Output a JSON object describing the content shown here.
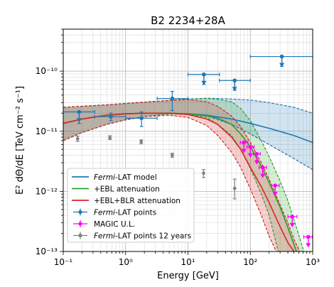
{
  "chart_data": {
    "type": "line",
    "title": "B2 2234+28A",
    "xlabel": "Energy [GeV]",
    "ylabel": "E² dΘ/dE [TeV cm⁻² s⁻¹]",
    "xscale": "log",
    "yscale": "log",
    "xlim": [
      0.1,
      1000
    ],
    "ylim": [
      1e-13,
      5e-10
    ],
    "grid": true,
    "legend_position": "lower-left",
    "x_ticks": [
      "10⁻¹",
      "10⁰",
      "10¹",
      "10²",
      "10³"
    ],
    "y_ticks": [
      "10⁻¹³",
      "10⁻¹²",
      "10⁻¹¹",
      "10⁻¹⁰"
    ],
    "colors": {
      "model": "#1f77b4",
      "ebl": "#2ca02c",
      "ebl_blr": "#d62728",
      "lat_points": "#1f77b4",
      "magic": "#ff00ff",
      "lat12": "#7f7f7f"
    },
    "series": [
      {
        "name": "Fermi-LAT model",
        "kind": "line",
        "color": "#1f77b4",
        "x": [
          0.1,
          0.2,
          0.5,
          1,
          2,
          5,
          10,
          20,
          50,
          100,
          200,
          500,
          1000
        ],
        "y": [
          1.35e-11,
          1.6e-11,
          1.85e-11,
          1.95e-11,
          2e-11,
          2e-11,
          1.95e-11,
          1.85e-11,
          1.6e-11,
          1.35e-11,
          1.12e-11,
          8.5e-12,
          6.5e-12
        ],
        "band_low": [
          7e-12,
          9.5e-12,
          1.3e-11,
          1.55e-11,
          1.75e-11,
          1.95e-11,
          1.95e-11,
          1.8e-11,
          1.3e-11,
          9e-12,
          6e-12,
          3.5e-12,
          2.3e-12
        ],
        "band_high": [
          2.5e-11,
          2.6e-11,
          2.75e-11,
          2.9e-11,
          3.05e-11,
          3.25e-11,
          3.45e-11,
          3.55e-11,
          3.45e-11,
          3.3e-11,
          3e-11,
          2.5e-11,
          2e-11
        ]
      },
      {
        "name": "+EBL attenuation",
        "kind": "line",
        "color": "#2ca02c",
        "x": [
          0.1,
          0.2,
          0.5,
          1,
          2,
          5,
          10,
          20,
          30,
          50,
          70,
          100,
          150,
          200,
          300,
          400,
          550
        ],
        "y": [
          1.35e-11,
          1.6e-11,
          1.85e-11,
          1.95e-11,
          2e-11,
          2e-11,
          1.95e-11,
          1.8e-11,
          1.65e-11,
          1.3e-11,
          9e-12,
          5.5e-12,
          2.6e-12,
          1.4e-12,
          5.5e-13,
          2.5e-13,
          1e-13
        ],
        "band_low": [
          7e-12,
          9.5e-12,
          1.3e-11,
          1.55e-11,
          1.75e-11,
          1.95e-11,
          1.9e-11,
          1.7e-11,
          1.3e-11,
          8.5e-12,
          5e-12,
          2.4e-12,
          9e-13,
          4e-13,
          1e-13
        ],
        "band_high": [
          2.5e-11,
          2.6e-11,
          2.75e-11,
          2.9e-11,
          3.05e-11,
          3.25e-11,
          3.45e-11,
          3.5e-11,
          3.4e-11,
          3.1e-11,
          2.4e-11,
          1.5e-11,
          7e-12,
          3.8e-12,
          1.5e-12,
          7e-13,
          2.5e-13,
          1e-13
        ],
        "band_low_x": [
          0.1,
          0.2,
          0.5,
          1,
          2,
          5,
          10,
          20,
          30,
          50,
          70,
          100,
          150,
          200,
          280
        ],
        "band_high_x": [
          0.1,
          0.2,
          0.5,
          1,
          2,
          5,
          10,
          20,
          30,
          50,
          70,
          100,
          150,
          200,
          300,
          400,
          550,
          720
        ]
      },
      {
        "name": "+EBL+BLR attenuation",
        "kind": "line",
        "color": "#d62728",
        "x": [
          0.1,
          0.2,
          0.5,
          1,
          2,
          5,
          10,
          20,
          30,
          50,
          70,
          100,
          150,
          200,
          300,
          400,
          500
        ],
        "y": [
          1.35e-11,
          1.6e-11,
          1.85e-11,
          1.95e-11,
          2e-11,
          2e-11,
          1.9e-11,
          1.6e-11,
          1.3e-11,
          8e-12,
          5e-12,
          2.5e-12,
          1.2e-12,
          6.5e-13,
          2.6e-13,
          1.4e-13,
          1e-13
        ],
        "band_low": [
          7e-12,
          9.5e-12,
          1.3e-11,
          1.55e-11,
          1.75e-11,
          1.85e-11,
          1.7e-11,
          1.25e-11,
          8.5e-12,
          4.5e-12,
          2.5e-12,
          1.1e-12,
          4e-13,
          1.8e-13,
          1e-13
        ],
        "band_low_x": [
          0.1,
          0.2,
          0.5,
          1,
          2,
          5,
          10,
          20,
          30,
          50,
          70,
          100,
          150,
          200,
          260
        ],
        "band_high": [
          2.5e-11,
          2.6e-11,
          2.75e-11,
          2.9e-11,
          3.05e-11,
          3.25e-11,
          3.35e-11,
          3.1e-11,
          2.6e-11,
          1.8e-11,
          1.2e-11,
          6.5e-12,
          3e-12,
          1.6e-12,
          6e-13,
          3e-13,
          1.6e-13,
          1e-13
        ],
        "band_high_x": [
          0.1,
          0.2,
          0.5,
          1,
          2,
          5,
          10,
          20,
          30,
          50,
          70,
          100,
          150,
          200,
          300,
          400,
          500,
          620
        ]
      },
      {
        "name": "Fermi-LAT points",
        "kind": "errorbar",
        "color": "#1f77b4",
        "points": [
          {
            "x": 0.18,
            "y": 2.1e-11,
            "xlo": 0.1,
            "xhi": 0.32,
            "ylo": 1.35e-11,
            "yhi": 2.1e-11,
            "ul": true
          },
          {
            "x": 0.58,
            "y": 1.75e-11,
            "xlo": 0.32,
            "xhi": 1.0,
            "ylo": 1.5e-11,
            "yhi": 2e-11,
            "ul": false
          },
          {
            "x": 1.8,
            "y": 1.65e-11,
            "xlo": 1.0,
            "xhi": 3.2,
            "ylo": 1.2e-11,
            "yhi": 2.1e-11,
            "ul": false
          },
          {
            "x": 5.6,
            "y": 3.5e-11,
            "xlo": 3.2,
            "xhi": 10.0,
            "ylo": 2.2e-11,
            "yhi": 4.6e-11,
            "ul": false
          },
          {
            "x": 18,
            "y": 8.8e-11,
            "xlo": 10,
            "xhi": 32,
            "ylo": 6e-11,
            "yhi": 8.8e-11,
            "ul": true
          },
          {
            "x": 56,
            "y": 7e-11,
            "xlo": 32,
            "xhi": 100,
            "ylo": 4.8e-11,
            "yhi": 7e-11,
            "ul": true
          },
          {
            "x": 320,
            "y": 1.75e-10,
            "xlo": 100,
            "xhi": 1000,
            "ylo": 1.2e-10,
            "yhi": 1.75e-10,
            "ul": true
          }
        ]
      },
      {
        "name": "MAGIC U.L.",
        "kind": "errorbar",
        "color": "#ff00ff",
        "points": [
          {
            "x": 79,
            "y": 6.5e-12,
            "xlo": 69,
            "xhi": 91,
            "ul": true
          },
          {
            "x": 100,
            "y": 5.5e-12,
            "xlo": 88,
            "xhi": 115,
            "ul": true
          },
          {
            "x": 127,
            "y": 4.2e-12,
            "xlo": 112,
            "xhi": 145,
            "ul": true
          },
          {
            "x": 158,
            "y": 2.5e-12,
            "xlo": 138,
            "xhi": 182,
            "ul": true
          },
          {
            "x": 250,
            "y": 1.25e-12,
            "xlo": 220,
            "xhi": 290,
            "ul": true
          },
          {
            "x": 470,
            "y": 3.8e-13,
            "xlo": 400,
            "xhi": 560,
            "ul": true
          },
          {
            "x": 850,
            "y": 1.75e-13,
            "xlo": 720,
            "xhi": 990,
            "ul": true
          }
        ]
      },
      {
        "name": "Fermi-LAT points 12 years",
        "kind": "errorbar",
        "color": "#7f7f7f",
        "points": [
          {
            "x": 0.17,
            "y": 7.5e-12,
            "ylo": 6.8e-12,
            "yhi": 8.3e-12
          },
          {
            "x": 0.56,
            "y": 7.8e-12,
            "ylo": 7.3e-12,
            "yhi": 8.4e-12
          },
          {
            "x": 1.78,
            "y": 6.7e-12,
            "ylo": 6.2e-12,
            "yhi": 7.2e-12
          },
          {
            "x": 5.6,
            "y": 4e-12,
            "ylo": 3.7e-12,
            "yhi": 4.3e-12
          },
          {
            "x": 17.8,
            "y": 2e-12,
            "ylo": 1.7e-12,
            "yhi": 2.3e-12
          },
          {
            "x": 56,
            "y": 1.12e-12,
            "ylo": 7.5e-13,
            "yhi": 1.6e-12
          }
        ]
      }
    ],
    "legend": [
      {
        "label": "Fermi-LAT model",
        "italic": "Fermi",
        "rest": "-LAT model",
        "marker": "line",
        "color": "#1f77b4"
      },
      {
        "label": "+EBL attenuation",
        "italic": "",
        "rest": "+EBL attenuation",
        "marker": "line",
        "color": "#2ca02c"
      },
      {
        "label": "+EBL+BLR attenuation",
        "italic": "",
        "rest": "+EBL+BLR attenuation",
        "marker": "line",
        "color": "#d62728"
      },
      {
        "label": "Fermi-LAT points",
        "italic": "Fermi",
        "rest": "-LAT points",
        "marker": "errorbar",
        "color": "#1f77b4"
      },
      {
        "label": "MAGIC U.L.",
        "italic": "",
        "rest": "MAGIC U.L.",
        "marker": "errorbar",
        "color": "#ff00ff"
      },
      {
        "label": "Fermi-LAT points 12 years",
        "italic": "Fermi",
        "rest": "-LAT points 12 years",
        "marker": "errorbar",
        "color": "#7f7f7f"
      }
    ]
  }
}
